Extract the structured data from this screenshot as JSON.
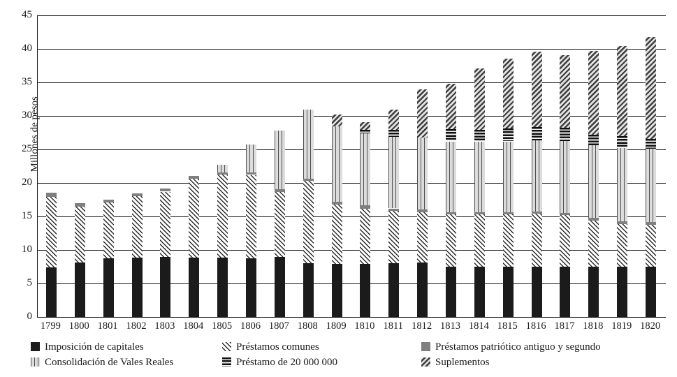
{
  "chart_data": {
    "type": "bar",
    "stacked": true,
    "title": "",
    "xlabel": "",
    "ylabel": "Millones de pesos",
    "ylim": [
      0,
      45
    ],
    "ytick_step": 5,
    "grid": true,
    "legend_position": "bottom",
    "categories": [
      "1799",
      "1800",
      "1801",
      "1802",
      "1803",
      "1804",
      "1805",
      "1806",
      "1807",
      "1808",
      "1809",
      "1810",
      "1811",
      "1812",
      "1813",
      "1814",
      "1815",
      "1816",
      "1817",
      "1818",
      "1819",
      "1820"
    ],
    "series": [
      {
        "name": "Imposición de capitales",
        "pattern": "solid-black",
        "values": [
          7.4,
          8.1,
          8.7,
          8.9,
          9.0,
          8.9,
          8.9,
          8.8,
          9.0,
          8.0,
          7.9,
          7.9,
          8.0,
          8.1,
          7.5,
          7.5,
          7.5,
          7.5,
          7.5,
          7.5,
          7.5,
          7.5
        ]
      },
      {
        "name": "Préstamos comunes",
        "pattern": "diag-back",
        "values": [
          10.5,
          8.4,
          8.4,
          9.1,
          9.7,
          11.7,
          12.4,
          12.4,
          9.6,
          12.3,
          8.9,
          8.2,
          7.8,
          7.5,
          7.8,
          7.8,
          7.8,
          7.9,
          7.7,
          6.9,
          6.4,
          6.3
        ]
      },
      {
        "name": "Préstamos patriótico antiguo y segundo",
        "pattern": "solid-gray",
        "values": [
          0.6,
          0.5,
          0.4,
          0.4,
          0.5,
          0.4,
          0.3,
          0.4,
          0.5,
          0.3,
          0.4,
          0.6,
          0.4,
          0.4,
          0.3,
          0.3,
          0.3,
          0.3,
          0.3,
          0.4,
          0.4,
          0.4
        ]
      },
      {
        "name": "Consolidación de Vales Reales",
        "pattern": "vlines",
        "values": [
          0,
          0,
          0,
          0,
          0,
          0,
          1.1,
          4.1,
          8.7,
          10.3,
          11.2,
          10.7,
          10.7,
          10.8,
          10.6,
          10.6,
          10.6,
          10.7,
          10.7,
          10.8,
          10.9,
          10.9
        ]
      },
      {
        "name": "Préstamo de 20 000 000",
        "pattern": "hlines",
        "values": [
          0,
          0,
          0,
          0,
          0,
          0,
          0,
          0,
          0,
          0,
          0,
          0.5,
          1.0,
          0,
          1.8,
          1.7,
          1.9,
          1.9,
          2.0,
          1.6,
          1.8,
          1.5
        ]
      },
      {
        "name": "Suplementos",
        "pattern": "diag-fwd",
        "values": [
          0,
          0,
          0,
          0,
          0,
          0,
          0,
          0,
          0,
          0,
          1.8,
          1.2,
          3.0,
          7.2,
          6.8,
          9.2,
          10.4,
          11.3,
          10.9,
          12.5,
          13.4,
          15.2
        ]
      }
    ],
    "yticks": [
      0,
      5,
      10,
      15,
      20,
      25,
      30,
      35,
      40,
      45
    ],
    "legend_rows": [
      [
        0,
        1,
        2
      ],
      [
        3,
        4,
        5
      ]
    ],
    "colors": {
      "ink": "#1a1a1a",
      "solid_black": "#1b1b1b",
      "solid_gray": "#7f7f7f",
      "background": "#ffffff"
    }
  }
}
